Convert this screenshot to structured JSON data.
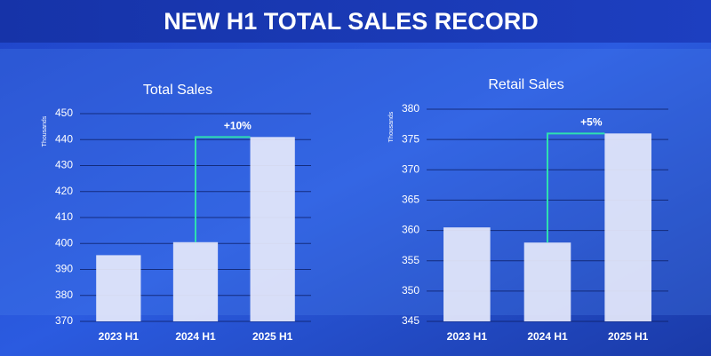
{
  "header": {
    "title": "NEW H1 TOTAL SALES RECORD"
  },
  "chart_data": [
    {
      "type": "bar",
      "title": "Total Sales",
      "y_label": "Thousands",
      "categories": [
        "2023 H1",
        "2024 H1",
        "2025 H1"
      ],
      "values": [
        395.5,
        400.5,
        441
      ],
      "color": "#e6e9fb",
      "ylim": [
        370,
        450
      ],
      "yticks": [
        370,
        380,
        390,
        400,
        410,
        420,
        430,
        440,
        450
      ],
      "grid": true,
      "annotation": "+10%"
    },
    {
      "type": "bar",
      "title": "Retail Sales",
      "y_label": "Thousands",
      "categories": [
        "2023 H1",
        "2024 H1",
        "2025 H1"
      ],
      "values": [
        360.5,
        358,
        376
      ],
      "color": "#e6e9fb",
      "ylim": [
        345,
        380
      ],
      "yticks": [
        345,
        350,
        355,
        360,
        365,
        370,
        375,
        380
      ],
      "grid": true,
      "annotation": "+5%"
    }
  ]
}
